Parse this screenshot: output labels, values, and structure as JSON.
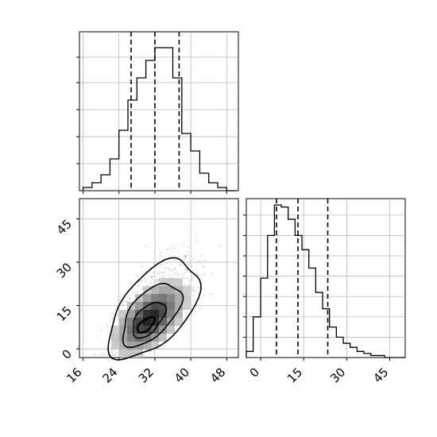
{
  "chart_data": [
    {
      "type": "histogram",
      "panel": "top-left",
      "variable_index": 0,
      "bin_edges": [
        16,
        18,
        20,
        22,
        24,
        26,
        28,
        30,
        32,
        34,
        36,
        38,
        40,
        42,
        44,
        46,
        48,
        50
      ],
      "counts": [
        0.02,
        0.05,
        0.1,
        0.2,
        0.38,
        0.57,
        0.71,
        0.82,
        0.9,
        0.9,
        0.71,
        0.36,
        0.25,
        0.11,
        0.05,
        0.02,
        0.0
      ],
      "quantile_lines": [
        26.7,
        32.0,
        37.4
      ],
      "xlim": [
        15.2,
        50.6
      ],
      "grid": true
    },
    {
      "type": "histogram",
      "panel": "bottom-right",
      "variable_index": 1,
      "bin_edges": [
        -5,
        -2.6,
        0,
        2.4,
        4.8,
        7.2,
        9.6,
        12,
        14.4,
        16.8,
        19.2,
        21.6,
        24,
        26.4,
        28.8,
        31.2,
        33.6,
        36,
        38.4,
        40.8,
        43.2,
        45.6,
        48,
        50.4
      ],
      "counts": [
        0.03,
        0.2,
        0.39,
        0.6,
        0.75,
        0.74,
        0.68,
        0.6,
        0.53,
        0.44,
        0.32,
        0.24,
        0.15,
        0.1,
        0.07,
        0.05,
        0.03,
        0.02,
        0.01,
        0.01,
        0.0,
        0.0,
        0.0
      ],
      "quantile_lines": [
        5.5,
        13.0,
        23.4
      ],
      "xlim": [
        -5,
        50.4
      ],
      "grid": true
    },
    {
      "type": "heatmap",
      "panel": "bottom-left",
      "variables": [
        0,
        1
      ],
      "x_ticks": [
        "16",
        "24",
        "32",
        "40",
        "48"
      ],
      "y_ticks": [
        "0",
        "15",
        "30",
        "45"
      ],
      "xlim": [
        15.2,
        50.6
      ],
      "ylim": [
        -3,
        52
      ],
      "center": [
        30,
        8.3
      ],
      "scatter_point_count": 900,
      "contour_levels": [
        "innermost",
        "inner",
        "middle",
        "outer"
      ],
      "grid": true
    }
  ],
  "colors": {
    "line": "#000000",
    "grid": "#b0b0b0",
    "scatter": "#bdbdbd",
    "density_light": "#ececec",
    "density_dark": "#202020"
  }
}
